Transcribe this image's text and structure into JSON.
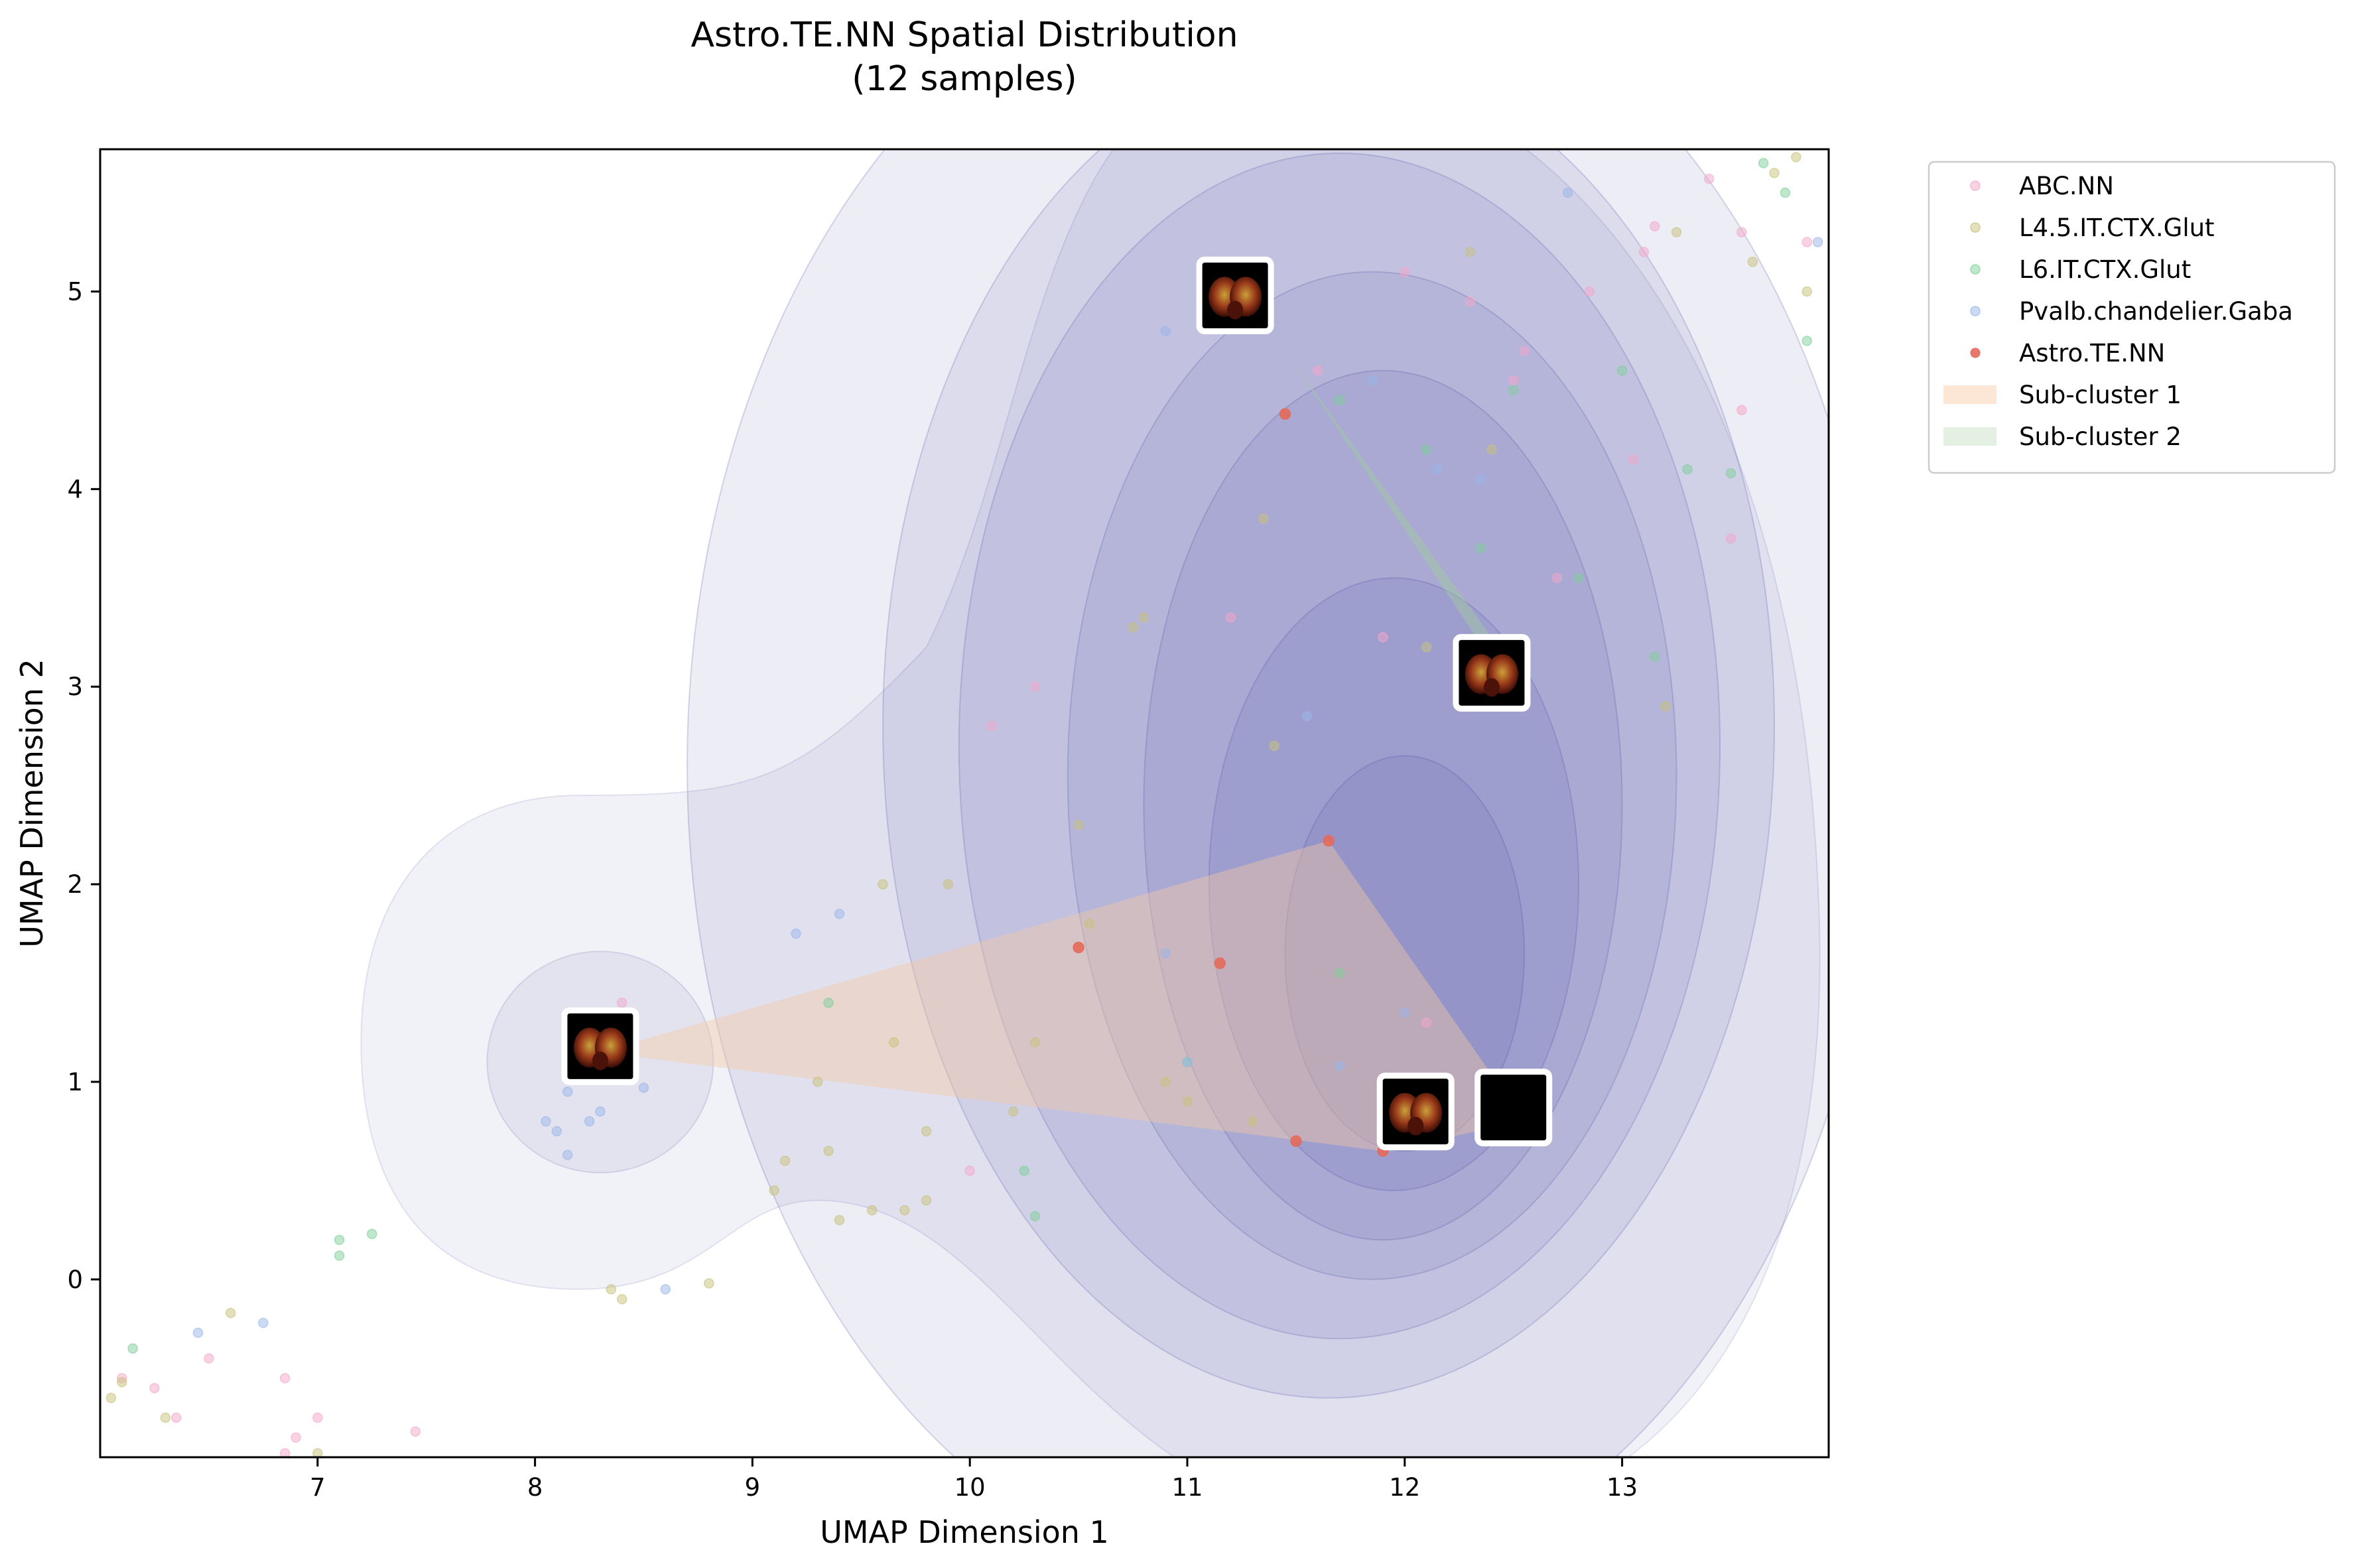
{
  "chart_data": {
    "type": "scatter",
    "title": "Astro.TE.NN Spatial Distribution",
    "subtitle": "(12 samples)",
    "xlabel": "UMAP Dimension 1",
    "ylabel": "UMAP Dimension 2",
    "xlim": [
      6.0,
      13.95
    ],
    "ylim": [
      -0.9,
      5.72
    ],
    "xticks": [
      7,
      8,
      9,
      10,
      11,
      12,
      13
    ],
    "yticks": [
      0,
      1,
      2,
      3,
      4,
      5
    ],
    "grid": false,
    "legend": {
      "placement": "outside-top-right",
      "entries": [
        {
          "label": "ABC.NN",
          "kind": "point",
          "color": "#f4a6c9"
        },
        {
          "label": "L4.5.IT.CTX.Glut",
          "kind": "point",
          "color": "#c8c27a"
        },
        {
          "label": "L6.IT.CTX.Glut",
          "kind": "point",
          "color": "#7fcf9a"
        },
        {
          "label": "Pvalb.chandelier.Gaba",
          "kind": "point",
          "color": "#9ab6ea"
        },
        {
          "label": "Astro.TE.NN",
          "kind": "point",
          "color": "#e36a5a"
        },
        {
          "label": "Sub-cluster 1",
          "kind": "patch",
          "color": "#fbdcc4"
        },
        {
          "label": "Sub-cluster 2",
          "kind": "patch",
          "color": "#d8ead4"
        }
      ]
    },
    "density_color": "#3b3b9c",
    "series": [
      {
        "name": "ABC.NN",
        "color": "#f4a6c9",
        "points": [
          [
            6.1,
            -0.5
          ],
          [
            6.25,
            -0.55
          ],
          [
            6.35,
            -0.7
          ],
          [
            6.5,
            -0.4
          ],
          [
            6.85,
            -0.5
          ],
          [
            6.9,
            -0.8
          ],
          [
            7.0,
            -0.7
          ],
          [
            7.45,
            -0.77
          ],
          [
            6.85,
            -0.88
          ],
          [
            8.4,
            1.4
          ],
          [
            10.0,
            0.55
          ],
          [
            11.6,
            4.6
          ],
          [
            12.0,
            5.1
          ],
          [
            12.3,
            4.95
          ],
          [
            12.5,
            4.55
          ],
          [
            12.55,
            4.7
          ],
          [
            12.7,
            3.55
          ],
          [
            12.85,
            5.0
          ],
          [
            13.05,
            4.15
          ],
          [
            13.15,
            5.33
          ],
          [
            13.4,
            5.57
          ],
          [
            13.55,
            5.3
          ],
          [
            13.5,
            3.75
          ],
          [
            13.55,
            4.4
          ],
          [
            13.85,
            5.25
          ],
          [
            13.1,
            5.2
          ],
          [
            11.9,
            3.25
          ],
          [
            12.1,
            1.3
          ],
          [
            11.2,
            3.35
          ],
          [
            10.1,
            2.8
          ],
          [
            10.3,
            3.0
          ]
        ]
      },
      {
        "name": "L4.5.IT.CTX.Glut",
        "color": "#c8c27a",
        "points": [
          [
            6.05,
            -0.6
          ],
          [
            6.1,
            -0.52
          ],
          [
            6.3,
            -0.7
          ],
          [
            6.6,
            -0.17
          ],
          [
            7.0,
            -0.88
          ],
          [
            8.35,
            -0.05
          ],
          [
            8.4,
            -0.1
          ],
          [
            8.8,
            -0.02
          ],
          [
            9.1,
            0.45
          ],
          [
            9.15,
            0.6
          ],
          [
            9.35,
            0.65
          ],
          [
            9.3,
            1.0
          ],
          [
            9.4,
            0.3
          ],
          [
            9.55,
            0.35
          ],
          [
            9.7,
            0.35
          ],
          [
            9.8,
            0.4
          ],
          [
            9.9,
            2.0
          ],
          [
            9.6,
            2.0
          ],
          [
            9.65,
            1.2
          ],
          [
            9.8,
            0.75
          ],
          [
            10.2,
            0.85
          ],
          [
            10.3,
            1.2
          ],
          [
            10.5,
            2.3
          ],
          [
            10.55,
            1.8
          ],
          [
            10.75,
            3.3
          ],
          [
            10.8,
            3.35
          ],
          [
            10.9,
            1.0
          ],
          [
            11.0,
            0.9
          ],
          [
            11.3,
            0.8
          ],
          [
            11.35,
            3.85
          ],
          [
            11.4,
            2.7
          ],
          [
            12.1,
            3.2
          ],
          [
            12.4,
            4.2
          ],
          [
            12.3,
            5.2
          ],
          [
            13.2,
            2.9
          ],
          [
            13.25,
            5.3
          ],
          [
            13.6,
            5.15
          ],
          [
            13.7,
            5.6
          ],
          [
            13.85,
            5.0
          ],
          [
            13.8,
            5.68
          ]
        ]
      },
      {
        "name": "L6.IT.CTX.Glut",
        "color": "#7fcf9a",
        "points": [
          [
            6.15,
            -0.35
          ],
          [
            7.1,
            0.2
          ],
          [
            7.1,
            0.12
          ],
          [
            7.25,
            0.23
          ],
          [
            9.35,
            1.4
          ],
          [
            10.3,
            0.32
          ],
          [
            10.25,
            0.55
          ],
          [
            11.0,
            1.1
          ],
          [
            11.7,
            4.45
          ],
          [
            11.7,
            1.55
          ],
          [
            12.1,
            4.2
          ],
          [
            12.35,
            3.7
          ],
          [
            12.5,
            4.5
          ],
          [
            12.8,
            3.55
          ],
          [
            13.0,
            4.6
          ],
          [
            13.15,
            3.15
          ],
          [
            13.3,
            4.1
          ],
          [
            13.5,
            4.08
          ],
          [
            13.65,
            5.65
          ],
          [
            13.75,
            5.5
          ],
          [
            13.85,
            4.75
          ]
        ]
      },
      {
        "name": "Pvalb.chandelier.Gaba",
        "color": "#9ab6ea",
        "points": [
          [
            6.45,
            -0.27
          ],
          [
            6.75,
            -0.22
          ],
          [
            8.05,
            0.8
          ],
          [
            8.1,
            0.75
          ],
          [
            8.15,
            0.95
          ],
          [
            8.25,
            0.8
          ],
          [
            8.3,
            0.85
          ],
          [
            8.15,
            0.63
          ],
          [
            8.5,
            0.97
          ],
          [
            8.6,
            -0.05
          ],
          [
            9.2,
            1.75
          ],
          [
            9.4,
            1.85
          ],
          [
            10.9,
            1.65
          ],
          [
            11.0,
            1.1
          ],
          [
            10.9,
            4.8
          ],
          [
            11.55,
            2.85
          ],
          [
            11.7,
            1.08
          ],
          [
            12.0,
            1.35
          ],
          [
            12.35,
            4.05
          ],
          [
            12.15,
            4.1
          ],
          [
            11.85,
            4.55
          ],
          [
            12.75,
            5.5
          ],
          [
            13.9,
            5.25
          ]
        ]
      },
      {
        "name": "Astro.TE.NN",
        "color": "#e36a5a",
        "points": [
          [
            8.3,
            1.15
          ],
          [
            10.5,
            1.68
          ],
          [
            11.15,
            1.6
          ],
          [
            11.45,
            4.38
          ],
          [
            11.65,
            2.22
          ],
          [
            11.9,
            0.65
          ],
          [
            12.25,
            3.05
          ],
          [
            12.45,
            0.85
          ],
          [
            12.6,
            0.8
          ],
          [
            11.3,
            4.95
          ],
          [
            12.05,
            0.8
          ],
          [
            11.5,
            0.7
          ]
        ]
      }
    ],
    "subclusters": [
      {
        "label": "Sub-cluster 1",
        "color": "#f6c8a2",
        "polygon": [
          [
            8.3,
            1.15
          ],
          [
            11.65,
            2.22
          ],
          [
            12.55,
            0.8
          ],
          [
            11.9,
            0.65
          ]
        ]
      },
      {
        "label": "Sub-cluster 2",
        "color": "#9fd09a",
        "polygon": [
          [
            11.3,
            4.95
          ],
          [
            12.45,
            3.05
          ],
          [
            12.4,
            3.25
          ],
          [
            11.45,
            4.7
          ]
        ]
      }
    ],
    "thumbnails": [
      {
        "x": 8.3,
        "y": 1.18
      },
      {
        "x": 11.22,
        "y": 4.98
      },
      {
        "x": 12.4,
        "y": 3.07
      },
      {
        "x": 12.05,
        "y": 0.85
      },
      {
        "x": 12.5,
        "y": 0.87
      }
    ]
  }
}
